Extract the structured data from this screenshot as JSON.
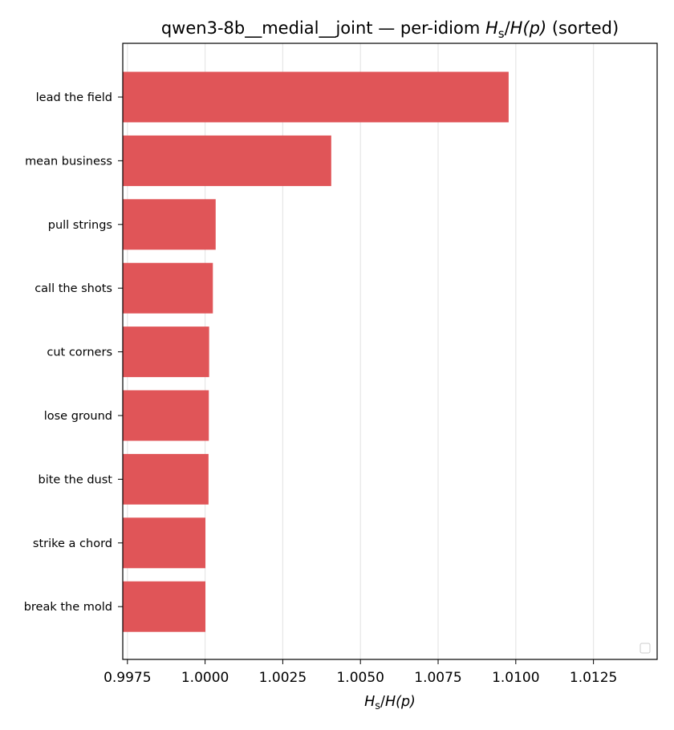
{
  "chart_data": {
    "type": "bar",
    "orientation": "horizontal",
    "title": {
      "prefix": "qwen3-8b__medial__joint — per-idiom ",
      "ratio_num": "H",
      "ratio_num_sub": "s",
      "ratio_sep": "/",
      "ratio_den": "H",
      "ratio_den_arg": "(p)",
      "suffix": " (sorted)"
    },
    "xlabel": {
      "num": "H",
      "num_sub": "s",
      "sep": "/",
      "den": "H",
      "den_arg": "(p)"
    },
    "categories": [
      "lead the field",
      "mean business",
      "pull strings",
      "call the shots",
      "cut corners",
      "lose ground",
      "bite the dust",
      "strike a chord",
      "break the mold"
    ],
    "values": [
      1.00977,
      1.00406,
      1.00034,
      1.00025,
      1.00013,
      1.00012,
      1.00011,
      1.00001,
      1.00001
    ],
    "xlim": [
      0.99735,
      1.01455
    ],
    "xticks": [
      0.9975,
      1.0,
      1.0025,
      1.005,
      1.0075,
      1.01,
      1.0125
    ],
    "xtick_labels": [
      "0.9975",
      "1.0000",
      "1.0025",
      "1.0050",
      "1.0075",
      "1.0100",
      "1.0125"
    ],
    "grid": "vertical",
    "legend": "lower-right (empty)",
    "colors": {
      "bar": "#e05558",
      "grid": "#e6e6e6",
      "axis": "#000000"
    }
  }
}
